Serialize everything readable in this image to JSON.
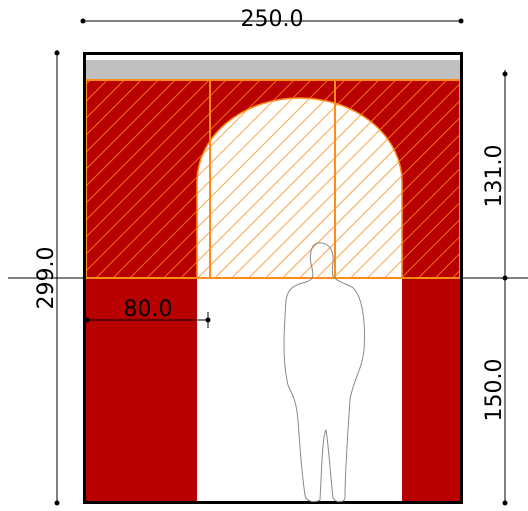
{
  "dimensions": {
    "width": "250.0",
    "height": "299.0",
    "upper": "131.0",
    "lower": "150.0",
    "side": "80.0"
  }
}
